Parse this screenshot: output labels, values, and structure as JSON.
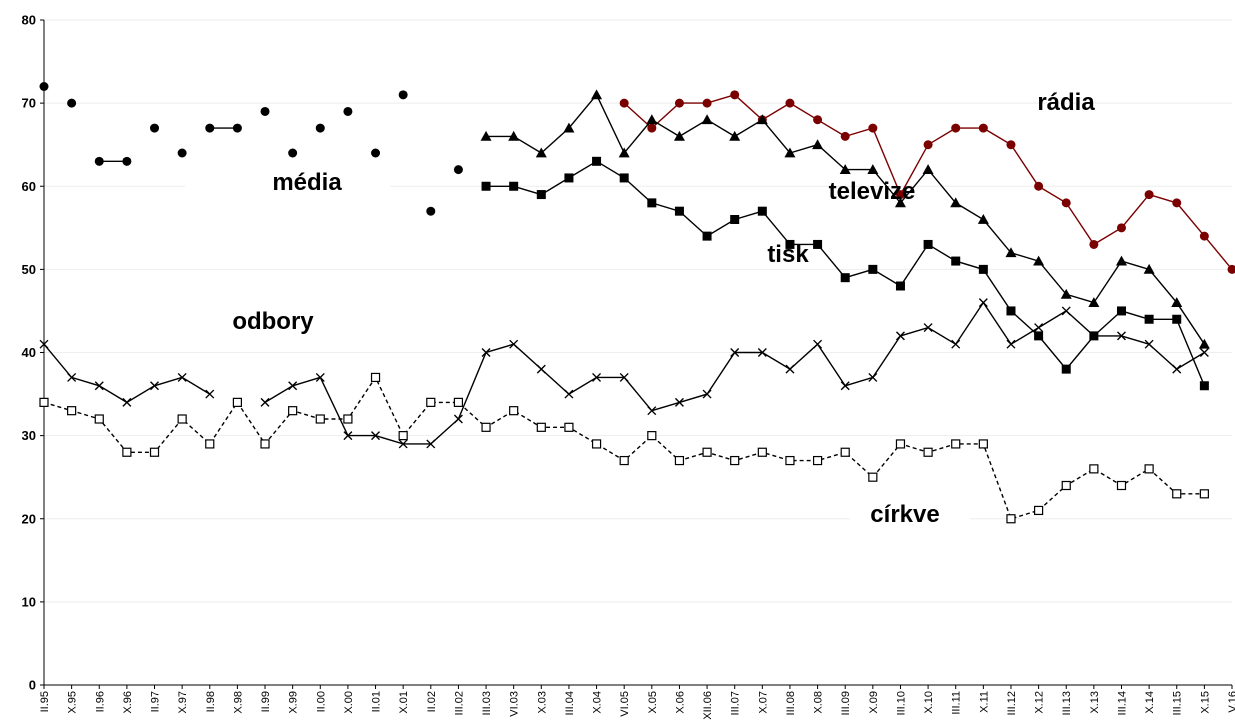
{
  "chart_data": {
    "type": "line",
    "title": "",
    "xlabel": "",
    "ylabel": "",
    "ylim": [
      0,
      80
    ],
    "yticks": [
      0,
      10,
      20,
      30,
      40,
      50,
      60,
      70,
      80
    ],
    "grid": true,
    "x": [
      "II.95",
      "X.95",
      "II.96",
      "X.96",
      "II.97",
      "X.97",
      "II.98",
      "X.98",
      "II.99",
      "X.99",
      "II.00",
      "X.00",
      "II.01",
      "X.01",
      "II.02",
      "III.02",
      "III.03",
      "VI.03",
      "X.03",
      "III.04",
      "X.04",
      "VI.05",
      "X.05",
      "X.06",
      "XII.06",
      "III.07",
      "X.07",
      "III.08",
      "X.08",
      "III.09",
      "X.09",
      "III.10",
      "X.10",
      "III.11",
      "X.11",
      "III.12",
      "X.12",
      "III.13",
      "X.13",
      "III.14",
      "X.14",
      "III.15",
      "X.15",
      "V.16"
    ],
    "series": [
      {
        "name": "média",
        "color": "#000000",
        "marker": "dot",
        "dash": "solid",
        "values": [
          72,
          70,
          63,
          63,
          67,
          64,
          67,
          67,
          69,
          64,
          67,
          69,
          64,
          71,
          57,
          62,
          null,
          null,
          null,
          null,
          null,
          null,
          null,
          null,
          null,
          null,
          null,
          null,
          null,
          null,
          null,
          null,
          null,
          null,
          null,
          null,
          null,
          null,
          null,
          null,
          null,
          null,
          null,
          null
        ],
        "segments": [
          [
            2,
            3
          ],
          [
            6,
            7
          ]
        ]
      },
      {
        "name": "rádia",
        "color": "#7b0000",
        "marker": "dot",
        "dash": "solid",
        "values": [
          null,
          null,
          null,
          null,
          null,
          null,
          null,
          null,
          null,
          null,
          null,
          null,
          null,
          null,
          null,
          null,
          null,
          null,
          null,
          null,
          null,
          70,
          67,
          70,
          70,
          71,
          68,
          70,
          68,
          66,
          67,
          59,
          65,
          67,
          67,
          65,
          60,
          58,
          53,
          55,
          59,
          58,
          54,
          50
        ]
      },
      {
        "name": "televize",
        "color": "#000000",
        "marker": "triangle",
        "dash": "solid",
        "values": [
          null,
          null,
          null,
          null,
          null,
          null,
          null,
          null,
          null,
          null,
          null,
          null,
          null,
          null,
          null,
          null,
          66,
          66,
          64,
          67,
          71,
          64,
          68,
          66,
          68,
          66,
          68,
          64,
          65,
          62,
          62,
          58,
          62,
          58,
          56,
          52,
          51,
          47,
          46,
          51,
          50,
          46,
          41,
          null
        ]
      },
      {
        "name": "tisk",
        "color": "#000000",
        "marker": "square",
        "dash": "solid",
        "values": [
          null,
          null,
          null,
          null,
          null,
          null,
          null,
          null,
          null,
          null,
          null,
          null,
          null,
          null,
          null,
          null,
          60,
          60,
          59,
          61,
          63,
          61,
          58,
          57,
          54,
          56,
          57,
          53,
          53,
          49,
          50,
          48,
          53,
          51,
          50,
          45,
          42,
          38,
          42,
          45,
          44,
          44,
          36,
          null
        ]
      },
      {
        "name": "odbory",
        "color": "#000000",
        "marker": "x",
        "dash": "solid",
        "values": [
          41,
          37,
          36,
          34,
          36,
          37,
          35,
          null,
          34,
          36,
          37,
          30,
          30,
          29,
          29,
          32,
          40,
          41,
          38,
          35,
          37,
          37,
          33,
          34,
          35,
          40,
          40,
          38,
          41,
          36,
          37,
          42,
          43,
          41,
          46,
          41,
          43,
          45,
          42,
          42,
          41,
          38,
          40,
          null
        ]
      },
      {
        "name": "církve",
        "color": "#000000",
        "marker": "open-square",
        "dash": "dashed",
        "values": [
          34,
          33,
          32,
          28,
          28,
          32,
          29,
          34,
          29,
          33,
          32,
          32,
          37,
          30,
          34,
          34,
          31,
          33,
          31,
          31,
          29,
          27,
          30,
          27,
          28,
          27,
          28,
          27,
          27,
          28,
          25,
          29,
          28,
          29,
          29,
          20,
          21,
          24,
          26,
          24,
          26,
          23,
          23,
          null
        ]
      }
    ],
    "annotations": [
      "média",
      "rádia",
      "televize",
      "tisk",
      "odbory",
      "církve"
    ]
  }
}
